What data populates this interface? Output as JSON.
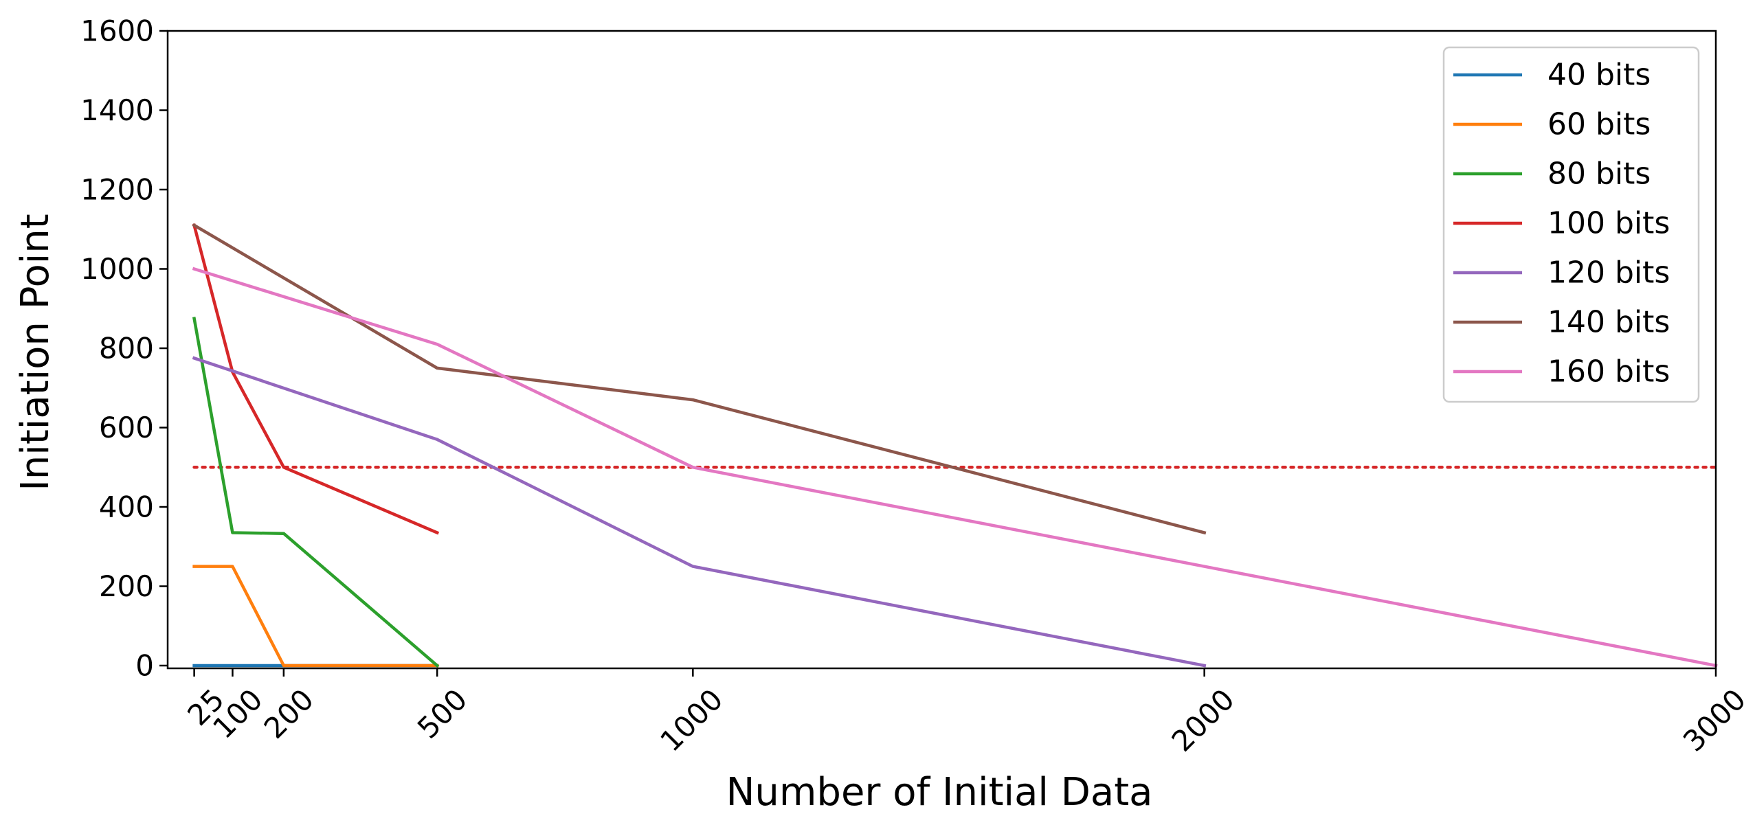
{
  "chart_data": {
    "type": "line",
    "title": "",
    "xlabel": "Number of Initial Data",
    "ylabel": "Initiation Point",
    "xlim": [
      0,
      3000
    ],
    "ylim": [
      0,
      1600
    ],
    "x_ticks": [
      25,
      100,
      200,
      500,
      1000,
      2000,
      3000
    ],
    "x_tick_labels": [
      "25",
      "100",
      "200",
      "500",
      "1000",
      "2000",
      "3000"
    ],
    "y_ticks": [
      0,
      200,
      400,
      600,
      800,
      1000,
      1200,
      1400,
      1600
    ],
    "y_tick_labels": [
      "0",
      "200",
      "400",
      "600",
      "800",
      "1000",
      "1200",
      "1400",
      "1600"
    ],
    "grid": false,
    "legend_position": "top-right",
    "threshold_line": {
      "y": 500,
      "color": "#d62728",
      "style": "dotted"
    },
    "series": [
      {
        "name": "40 bits",
        "color": "#1f77b4",
        "x": [
          25,
          100,
          200,
          500
        ],
        "y": [
          0,
          0,
          0,
          0
        ]
      },
      {
        "name": "60 bits",
        "color": "#ff7f0e",
        "x": [
          25,
          100,
          200,
          500
        ],
        "y": [
          250,
          250,
          0,
          0
        ]
      },
      {
        "name": "80 bits",
        "color": "#2ca02c",
        "x": [
          25,
          100,
          200,
          500
        ],
        "y": [
          875,
          335,
          333,
          0
        ]
      },
      {
        "name": "100 bits",
        "color": "#d62728",
        "x": [
          25,
          100,
          200,
          500
        ],
        "y": [
          1110,
          740,
          500,
          335
        ]
      },
      {
        "name": "120 bits",
        "color": "#9467bd",
        "x": [
          25,
          500,
          1000,
          2000
        ],
        "y": [
          775,
          570,
          250,
          0
        ]
      },
      {
        "name": "140 bits",
        "color": "#8c564b",
        "x": [
          25,
          500,
          1000,
          2000
        ],
        "y": [
          1110,
          750,
          670,
          335
        ]
      },
      {
        "name": "160 bits",
        "color": "#e377c2",
        "x": [
          25,
          500,
          1000,
          3000
        ],
        "y": [
          1000,
          810,
          500,
          0
        ]
      }
    ]
  }
}
